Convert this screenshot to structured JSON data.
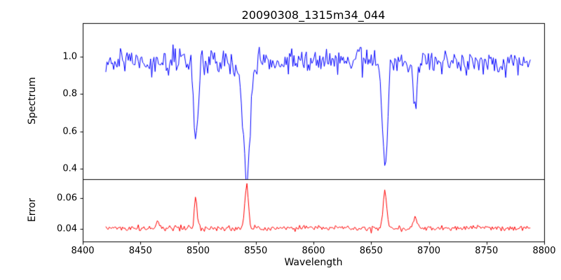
{
  "figure": {
    "background": "#ffffff",
    "text_color": "#000000"
  },
  "chart_data": {
    "type": "line",
    "title": "20090308_1315m34_044",
    "xlabel": "Wavelength",
    "xlim": [
      8400,
      8800
    ],
    "x_ticks": [
      8400,
      8450,
      8500,
      8550,
      8600,
      8650,
      8700,
      8750,
      8800
    ],
    "x_tick_labels": [
      "8400",
      "8450",
      "8500",
      "8550",
      "8600",
      "8650",
      "8700",
      "8750",
      "8800"
    ],
    "x_start": 8420,
    "x_end": 8788,
    "n_points": 380,
    "seed": 20090308,
    "grid": false,
    "legend": "none",
    "panels": [
      {
        "name": "spectrum",
        "ylabel": "Spectrum",
        "ylim": [
          0.344,
          1.18
        ],
        "y_ticks": [
          0.4,
          0.6,
          0.8,
          1.0
        ],
        "y_tick_labels": [
          "0.4",
          "0.6",
          "0.8",
          "1.0"
        ],
        "line_color": "#0000ff",
        "series": {
          "kind": "noisy-continuum-with-absorption-lines",
          "continuum": 0.97,
          "noise_sigma": 0.032,
          "lines": [
            {
              "center": 8498,
              "depth": 0.47,
              "sigma": 1.8
            },
            {
              "center": 8542,
              "depth": 0.6,
              "sigma": 3.2
            },
            {
              "center": 8662,
              "depth": 0.55,
              "sigma": 2.2
            },
            {
              "center": 8688,
              "depth": 0.24,
              "sigma": 1.6
            }
          ]
        }
      },
      {
        "name": "error",
        "ylabel": "Error",
        "ylim": [
          0.0318,
          0.0723
        ],
        "y_ticks": [
          0.04,
          0.06
        ],
        "y_tick_labels": [
          "0.04",
          "0.06"
        ],
        "line_color": "#ff0000",
        "series": {
          "kind": "noisy-baseline-with-peaks-at-line-centers",
          "continuum": 0.0405,
          "noise_sigma": 0.0009,
          "lines": [
            {
              "center": 8465,
              "depth": -0.004,
              "sigma": 1.5
            },
            {
              "center": 8498,
              "depth": -0.02,
              "sigma": 1.2
            },
            {
              "center": 8542,
              "depth": -0.028,
              "sigma": 1.6
            },
            {
              "center": 8662,
              "depth": -0.024,
              "sigma": 1.5
            },
            {
              "center": 8688,
              "depth": -0.007,
              "sigma": 1.4
            }
          ]
        }
      }
    ]
  }
}
